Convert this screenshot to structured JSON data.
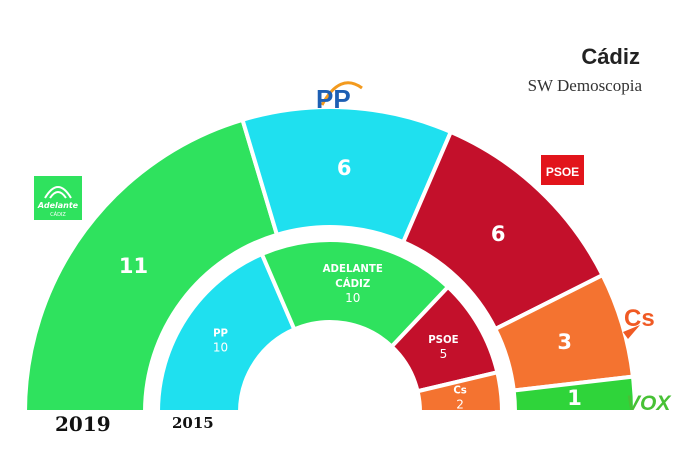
{
  "title": "Cádiz",
  "subtitle": "SW Demoscopia",
  "logos": {
    "pp": "PP",
    "psoe": "PSOE",
    "cs": "Cs",
    "vox": "VOX",
    "adelante": "Adelante",
    "adelante_sub": "CÁDIZ"
  },
  "chart_data": {
    "type": "hemicycle",
    "rings": [
      {
        "year": "2019",
        "total_seats": 27,
        "segments": [
          {
            "party": "Adelante Cádiz",
            "label": "",
            "seats": 11,
            "color": "#2fe25e"
          },
          {
            "party": "PP",
            "label": "",
            "seats": 6,
            "color": "#1fe0ef"
          },
          {
            "party": "PSOE",
            "label": "",
            "seats": 6,
            "color": "#c3102b"
          },
          {
            "party": "Cs",
            "label": "",
            "seats": 3,
            "color": "#f47330"
          },
          {
            "party": "VOX",
            "label": "",
            "seats": 1,
            "color": "#2fd43a"
          }
        ]
      },
      {
        "year": "2015",
        "total_seats": 27,
        "segments": [
          {
            "party": "PP",
            "label": "PP",
            "seats": 10,
            "color": "#1fe0ef"
          },
          {
            "party": "Adelante Cádiz",
            "label": "ADELANTE\nCÁDIZ",
            "seats": 10,
            "color": "#2fe25e"
          },
          {
            "party": "PSOE",
            "label": "PSOE",
            "seats": 5,
            "color": "#c3102b"
          },
          {
            "party": "Cs",
            "label": "Cs",
            "seats": 2,
            "color": "#f47330"
          }
        ]
      }
    ]
  }
}
